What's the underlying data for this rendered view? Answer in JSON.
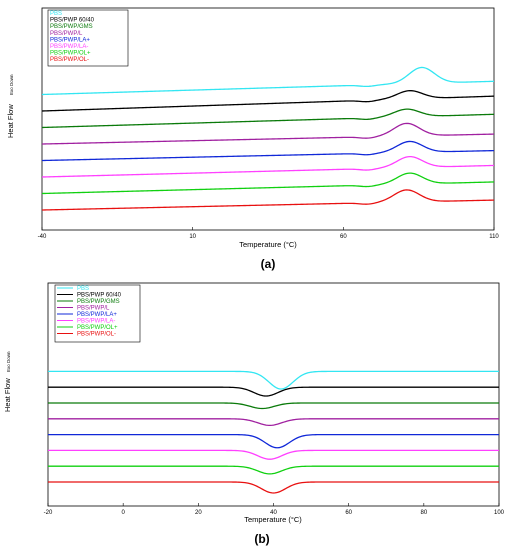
{
  "chart_data": [
    {
      "type": "line",
      "panel_label": "(a)",
      "xlabel": "Temperature (°C)",
      "ylabel": "Heat Flow",
      "y_direction_note": "Exo Down",
      "xlim": [
        -40,
        110
      ],
      "xticks": [
        "-40",
        "10",
        "60",
        "110"
      ],
      "grid": false,
      "legend_position": "top-left",
      "series": [
        {
          "name": "PBS",
          "color": "#33e6f2",
          "baseline_level": 9,
          "start_level": 9.0,
          "end_level": 9.8,
          "onset": 68,
          "peak_x": 86,
          "peak_amp": 2.9,
          "peak_type": "up"
        },
        {
          "name": "PBS/PWP 60/40",
          "color": "#000000",
          "baseline_level": 8,
          "start_level": 8.0,
          "end_level": 8.9,
          "onset": 68,
          "peak_x": 82,
          "peak_amp": 1.5,
          "peak_type": "up"
        },
        {
          "name": "PBS/PWP/GMS",
          "color": "#0a7a0a",
          "baseline_level": 7,
          "start_level": 7.0,
          "end_level": 7.8,
          "onset": 68,
          "peak_x": 81,
          "peak_amp": 1.4,
          "peak_type": "up"
        },
        {
          "name": "PBS/PWP/L",
          "color": "#a020a0",
          "baseline_level": 6,
          "start_level": 6.0,
          "end_level": 6.6,
          "onset": 68,
          "peak_x": 81,
          "peak_amp": 2.3,
          "peak_type": "up"
        },
        {
          "name": "PBS/PWP/LA+",
          "color": "#1028d8",
          "baseline_level": 5,
          "start_level": 5.0,
          "end_level": 5.6,
          "onset": 68,
          "peak_x": 82,
          "peak_amp": 2.0,
          "peak_type": "up"
        },
        {
          "name": "PBS/PWP/LA-",
          "color": "#ff40ff",
          "baseline_level": 4,
          "start_level": 4.0,
          "end_level": 4.7,
          "onset": 68,
          "peak_x": 82,
          "peak_amp": 2.0,
          "peak_type": "up"
        },
        {
          "name": "PBS/PWP/OL+",
          "color": "#10d010",
          "baseline_level": 3,
          "start_level": 3.0,
          "end_level": 3.7,
          "onset": 68,
          "peak_x": 82,
          "peak_amp": 2.0,
          "peak_type": "up"
        },
        {
          "name": "PBS/PWP/OL-",
          "color": "#e81010",
          "baseline_level": 2,
          "start_level": 2.0,
          "end_level": 2.6,
          "onset": 68,
          "peak_x": 81,
          "peak_amp": 2.2,
          "peak_type": "up"
        }
      ]
    },
    {
      "type": "line",
      "panel_label": "(b)",
      "xlabel": "Temperature (°C)",
      "ylabel": "Heat Flow",
      "y_direction_note": "Exo Down",
      "xlim": [
        -20,
        100
      ],
      "xticks": [
        "-20",
        "0",
        "20",
        "40",
        "60",
        "80",
        "100"
      ],
      "grid": false,
      "legend_position": "top-left",
      "series": [
        {
          "name": "PBS",
          "color": "#33e6f2",
          "baseline_level": 9,
          "start_level": 9.0,
          "end_level": 9.0,
          "peak_x": 42,
          "peak_amp": 1.6,
          "peak_type": "down"
        },
        {
          "name": "PBS/PWP 60/40",
          "color": "#000000",
          "baseline_level": 8,
          "start_level": 8.0,
          "end_level": 8.0,
          "peak_x": 38,
          "peak_amp": 0.8,
          "peak_type": "down"
        },
        {
          "name": "PBS/PWP/GMS",
          "color": "#0a7a0a",
          "baseline_level": 7,
          "start_level": 7.0,
          "end_level": 7.0,
          "peak_x": 37,
          "peak_amp": 0.5,
          "peak_type": "down"
        },
        {
          "name": "PBS/PWP/L",
          "color": "#a020a0",
          "baseline_level": 6,
          "start_level": 6.0,
          "end_level": 6.0,
          "peak_x": 39,
          "peak_amp": 0.6,
          "peak_type": "down"
        },
        {
          "name": "PBS/PWP/LA+",
          "color": "#1028d8",
          "baseline_level": 5,
          "start_level": 5.0,
          "end_level": 5.0,
          "peak_x": 41,
          "peak_amp": 1.2,
          "peak_type": "down"
        },
        {
          "name": "PBS/PWP/LA-",
          "color": "#ff40ff",
          "baseline_level": 4,
          "start_level": 4.0,
          "end_level": 4.0,
          "peak_x": 39,
          "peak_amp": 0.8,
          "peak_type": "down"
        },
        {
          "name": "PBS/PWP/OL+",
          "color": "#10d010",
          "baseline_level": 3,
          "start_level": 3.0,
          "end_level": 3.0,
          "peak_x": 39,
          "peak_amp": 0.7,
          "peak_type": "down"
        },
        {
          "name": "PBS/PWP/OL-",
          "color": "#e81010",
          "baseline_level": 2,
          "start_level": 2.0,
          "end_level": 2.0,
          "peak_x": 40,
          "peak_amp": 1.0,
          "peak_type": "down"
        }
      ]
    }
  ]
}
